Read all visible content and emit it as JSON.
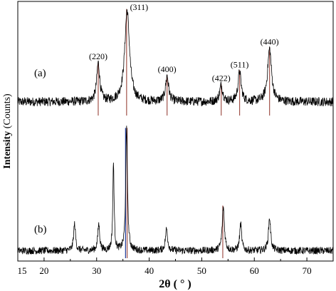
{
  "chart_data": {
    "type": "line",
    "title": "",
    "xlabel": "2θ ( ° )",
    "ylabel_bold": "Intensity",
    "ylabel_rest": " (Counts)",
    "xlim": [
      15,
      75
    ],
    "x_ticks": [
      15,
      20,
      30,
      40,
      50,
      60,
      70
    ],
    "grid": false,
    "legend": "none",
    "series": [
      {
        "name": "(a)",
        "color": "#000000",
        "baseline": 0.15,
        "noise": 0.05,
        "peaks": [
          {
            "x": 30.3,
            "height": 0.42,
            "width": 0.35
          },
          {
            "x": 35.8,
            "height": 1.0,
            "width": 0.55
          },
          {
            "x": 43.4,
            "height": 0.28,
            "width": 0.35
          },
          {
            "x": 53.7,
            "height": 0.18,
            "width": 0.35
          },
          {
            "x": 57.2,
            "height": 0.33,
            "width": 0.35
          },
          {
            "x": 62.9,
            "height": 0.58,
            "width": 0.45
          }
        ],
        "peak_labels": [
          {
            "x": 30.3,
            "text": "(220)"
          },
          {
            "x": 35.8,
            "text": "(311)"
          },
          {
            "x": 43.4,
            "text": "(400)"
          },
          {
            "x": 53.7,
            "text": "(422)"
          },
          {
            "x": 57.2,
            "text": "(511)"
          },
          {
            "x": 62.9,
            "text": "(440)"
          }
        ],
        "reference_lines": [
          30.3,
          35.7,
          43.4,
          53.7,
          57.2,
          62.9
        ],
        "reference_color": "#a0524a"
      },
      {
        "name": "(b)",
        "color": "#000000",
        "baseline": 0.05,
        "noise": 0.03,
        "peaks": [
          {
            "x": 25.8,
            "height": 0.22,
            "width": 0.22
          },
          {
            "x": 30.4,
            "height": 0.22,
            "width": 0.22
          },
          {
            "x": 33.2,
            "height": 0.72,
            "width": 0.15
          },
          {
            "x": 35.7,
            "height": 1.0,
            "width": 0.2
          },
          {
            "x": 43.3,
            "height": 0.18,
            "width": 0.25
          },
          {
            "x": 54.1,
            "height": 0.36,
            "width": 0.25
          },
          {
            "x": 57.4,
            "height": 0.22,
            "width": 0.22
          },
          {
            "x": 62.9,
            "height": 0.27,
            "width": 0.25
          }
        ],
        "reference_lines": [
          35.5,
          35.8,
          54.0
        ],
        "reference_color_1": "#1f3a9a",
        "reference_color_2": "#a0524a"
      }
    ]
  }
}
